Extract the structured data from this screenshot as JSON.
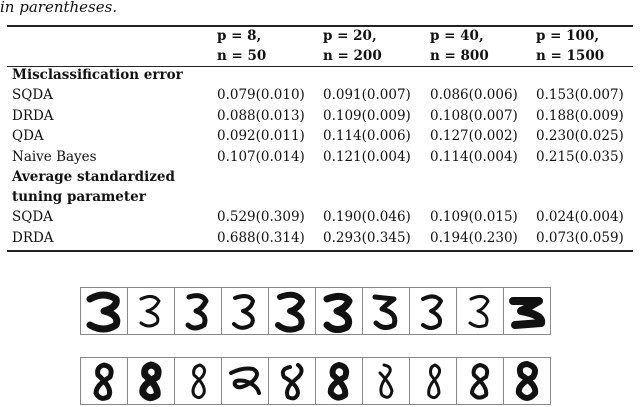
{
  "caption": "in parentheses.",
  "table": {
    "columns": [
      {
        "line1": "p = 8,",
        "line2": "n = 50"
      },
      {
        "line1": "p = 20,",
        "line2": "n = 200"
      },
      {
        "line1": "p = 40,",
        "line2": "n = 800"
      },
      {
        "line1": "p = 100,",
        "line2": "n = 1500"
      }
    ],
    "section1": "Misclassification error",
    "rows1": [
      {
        "label": "SQDA",
        "values": [
          "0.079(0.010)",
          "0.091(0.007)",
          "0.086(0.006)",
          "0.153(0.007)"
        ]
      },
      {
        "label": "DRDA",
        "values": [
          "0.088(0.013)",
          "0.109(0.009)",
          "0.108(0.007)",
          "0.188(0.009)"
        ]
      },
      {
        "label": "QDA",
        "values": [
          "0.092(0.011)",
          "0.114(0.006)",
          "0.127(0.002)",
          "0.230(0.025)"
        ]
      },
      {
        "label": "Naive Bayes",
        "values": [
          "0.107(0.014)",
          "0.121(0.004)",
          "0.114(0.004)",
          "0.215(0.035)"
        ]
      }
    ],
    "section2_line1": "Average standardized",
    "section2_line2": "tuning parameter",
    "rows2": [
      {
        "label": "SQDA",
        "values": [
          "0.529(0.309)",
          "0.190(0.046)",
          "0.109(0.015)",
          "0.024(0.004)"
        ]
      },
      {
        "label": "DRDA",
        "values": [
          "0.688(0.314)",
          "0.293(0.345)",
          "0.194(0.230)",
          "0.073(0.059)"
        ]
      }
    ]
  },
  "digit_rows": [
    {
      "digit": "3",
      "count": 10
    },
    {
      "digit": "8",
      "count": 10
    }
  ]
}
